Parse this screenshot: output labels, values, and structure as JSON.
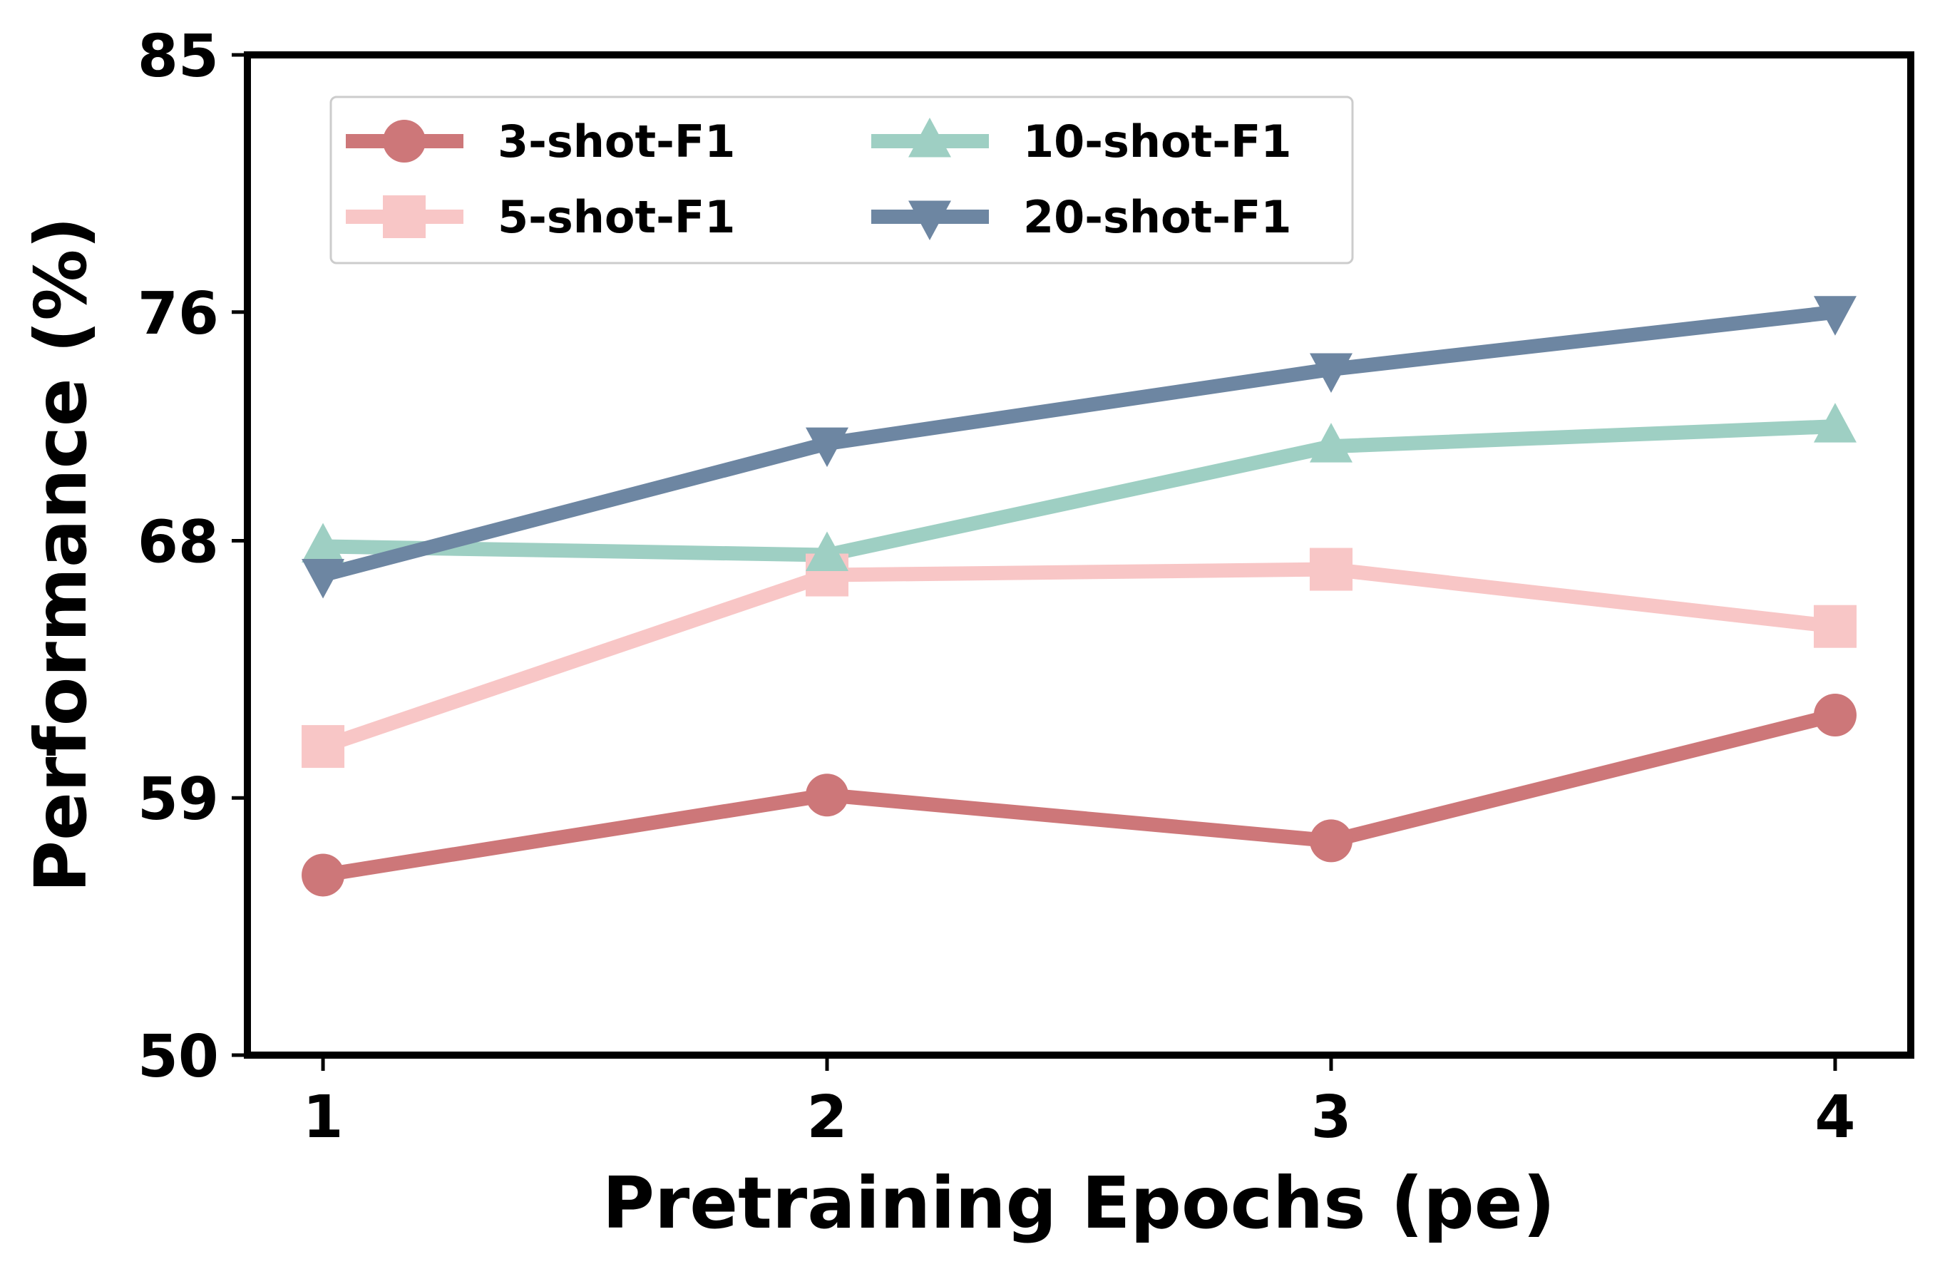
{
  "chart_data": {
    "type": "line",
    "title": "",
    "xlabel": "Pretraining Epochs (pe)",
    "ylabel": "Performance (%)",
    "x": [
      1,
      2,
      3,
      4
    ],
    "xtick_labels": [
      "1",
      "2",
      "3",
      "4"
    ],
    "xlim": [
      0.85,
      4.15
    ],
    "ylim": [
      50,
      85
    ],
    "yticks": [
      50,
      59,
      68,
      76,
      85
    ],
    "ytick_labels": [
      "50",
      "59",
      "68",
      "76",
      "85"
    ],
    "grid": false,
    "legend_position": "top-left",
    "legend_columns": 2,
    "series": [
      {
        "name": "3-shot-F1",
        "marker": "circle",
        "color": "#cd7779",
        "values": [
          56.3,
          59.1,
          57.5,
          61.9
        ]
      },
      {
        "name": "5-shot-F1",
        "marker": "square",
        "color": "#f8c6c6",
        "values": [
          60.8,
          66.8,
          67.0,
          65.0
        ]
      },
      {
        "name": "10-shot-F1",
        "marker": "triangle-up",
        "color": "#9ecfc3",
        "values": [
          67.8,
          67.5,
          71.3,
          72.0
        ]
      },
      {
        "name": "20-shot-F1",
        "marker": "triangle-down",
        "color": "#6d86a2",
        "values": [
          66.8,
          71.4,
          74.0,
          76.0
        ]
      }
    ]
  }
}
